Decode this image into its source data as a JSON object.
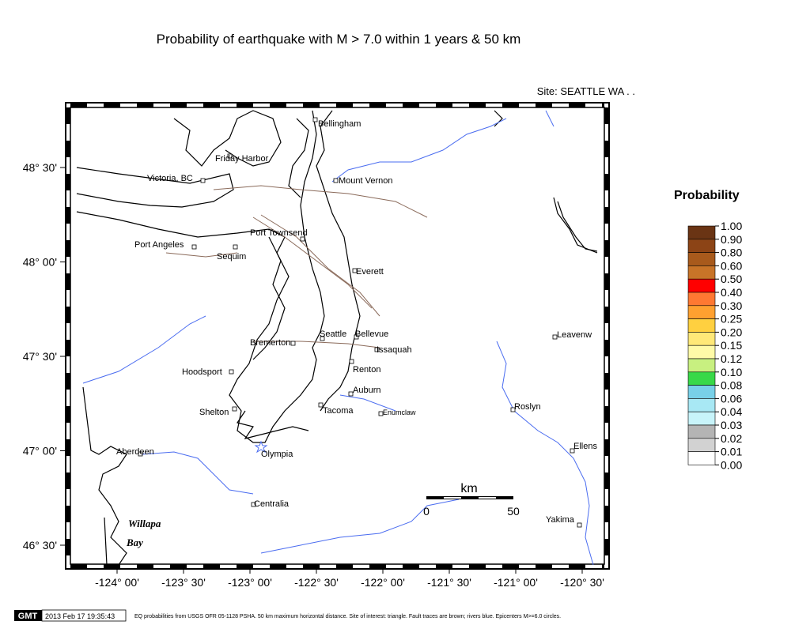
{
  "header": {
    "title": "Probability of earthquake with M > 7.0 within 1 years & 50 km",
    "site": "Site: SEATTLE  WA . ."
  },
  "map": {
    "lat_ticks": [
      "48° 30'",
      "48° 00'",
      "47° 30'",
      "47° 00'",
      "46° 30'"
    ],
    "lon_ticks": [
      "-124° 00'",
      "-123° 30'",
      "-123° 00'",
      "-122° 30'",
      "-122° 00'",
      "-121° 30'",
      "-121° 00'",
      "-120° 30'"
    ],
    "places": [
      "Bellingham",
      "Friday Harbor",
      "Victoria, BC",
      "Mount Vernon",
      "Port Townsend",
      "Port Angeles",
      "Sequim",
      "Everett",
      "Seattle",
      "Bellevue",
      "Issaquah",
      "Bremerton",
      "Renton",
      "Hoodsport",
      "Auburn",
      "Shelton",
      "Tacoma",
      "Enumclaw",
      "Olympia",
      "Aberdeen",
      "Centralia",
      "Roslyn",
      "Leavenw",
      "Ellens",
      "Yakima",
      "Willapa",
      "Bay"
    ],
    "scale": {
      "unit": "km",
      "start": "0",
      "end": "50"
    }
  },
  "legend": {
    "title": "Probability",
    "labels": [
      "1.00",
      "0.90",
      "0.80",
      "0.60",
      "0.50",
      "0.40",
      "0.30",
      "0.25",
      "0.20",
      "0.15",
      "0.12",
      "0.10",
      "0.08",
      "0.06",
      "0.04",
      "0.03",
      "0.02",
      "0.01",
      "0.00"
    ],
    "colors": [
      "#6a3414",
      "#8c4416",
      "#a85a1c",
      "#c87428",
      "#ff0000",
      "#ff7832",
      "#ffa030",
      "#ffd040",
      "#ffe878",
      "#fffaa8",
      "#c8f080",
      "#38d848",
      "#78d0e8",
      "#a8e8f4",
      "#c8f4fa",
      "#b4b4b4",
      "#d2d2d2",
      "#ffffff"
    ]
  },
  "footer": {
    "badge": "GMT",
    "timestamp": "2013 Feb 17 19:35:43",
    "caption": "EQ probabilities from USGS OFR 05-1128 PSHA. 50 km maximum horizontal distance. Site of interest: triangle. Fault traces are brown; rivers blue. Epicenters M>=6.0 circles."
  }
}
